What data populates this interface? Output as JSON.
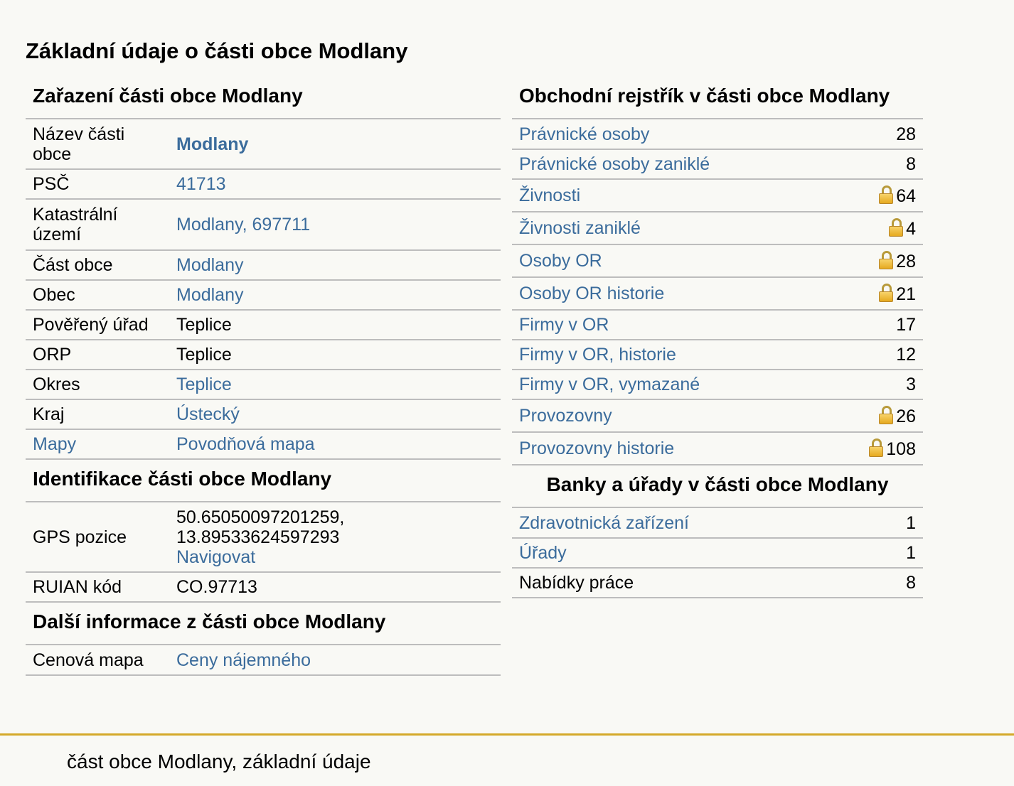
{
  "page_title": "Základní údaje o části obce Modlany",
  "zarazeni": {
    "title": "Zařazení části obce Modlany",
    "rows": [
      {
        "label": "Název části obce",
        "value": "Modlany"
      },
      {
        "label": "PSČ",
        "value": "41713"
      },
      {
        "label": "Katastrální území",
        "value": "Modlany, 697711"
      },
      {
        "label": "Část obce",
        "value": "Modlany"
      },
      {
        "label": "Obec",
        "value": "Modlany"
      },
      {
        "label": "Pověřený úřad",
        "value": "Teplice"
      },
      {
        "label": "ORP",
        "value": "Teplice"
      },
      {
        "label": "Okres",
        "value": "Teplice"
      },
      {
        "label": "Kraj",
        "value": "Ústecký"
      },
      {
        "label": "Mapy",
        "value": "Povodňová mapa"
      }
    ]
  },
  "identifikace": {
    "title": "Identifikace části obce Modlany",
    "gps_label": "GPS pozice",
    "gps_line1": "50.65050097201259,",
    "gps_line2": "13.89533624597293",
    "navigate_label": "Navigovat",
    "ruian_label": "RUIAN kód",
    "ruian_value": "CO.97713"
  },
  "dalsi": {
    "title": "Další informace z části obce Modlany",
    "label": "Cenová mapa",
    "value": "Ceny nájemného"
  },
  "rejstrik": {
    "title": "Obchodní rejstřík v části obce Modlany",
    "rows": [
      {
        "label": "Právnické osoby",
        "count": "28",
        "locked": false
      },
      {
        "label": "Právnické osoby zaniklé",
        "count": "8",
        "locked": false
      },
      {
        "label": "Živnosti",
        "count": "64",
        "locked": true
      },
      {
        "label": "Živnosti zaniklé",
        "count": "4",
        "locked": true
      },
      {
        "label": "Osoby OR",
        "count": "28",
        "locked": true
      },
      {
        "label": "Osoby OR historie",
        "count": "21",
        "locked": true
      },
      {
        "label": "Firmy v OR",
        "count": "17",
        "locked": false
      },
      {
        "label": "Firmy v OR, historie",
        "count": "12",
        "locked": false
      },
      {
        "label": "Firmy v OR, vymazané",
        "count": "3",
        "locked": false
      },
      {
        "label": "Provozovny",
        "count": "26",
        "locked": true
      },
      {
        "label": "Provozovny historie",
        "count": "108",
        "locked": true
      }
    ]
  },
  "banky": {
    "title": "Banky a úřady v části obce Modlany",
    "rows": [
      {
        "label": "Zdravotnická zařízení",
        "count": "1"
      },
      {
        "label": "Úřady",
        "count": "1"
      },
      {
        "label": "Nabídky práce",
        "count": "8"
      }
    ]
  },
  "footer": {
    "text": "část obce Modlany, základní údaje"
  },
  "colors": {
    "link": "#3b6c9c",
    "footer_rule": "#d4a92a",
    "background": "#f9f9f5",
    "row_border": "#bdbdbd"
  },
  "icons": {
    "lock": "lock-icon"
  }
}
